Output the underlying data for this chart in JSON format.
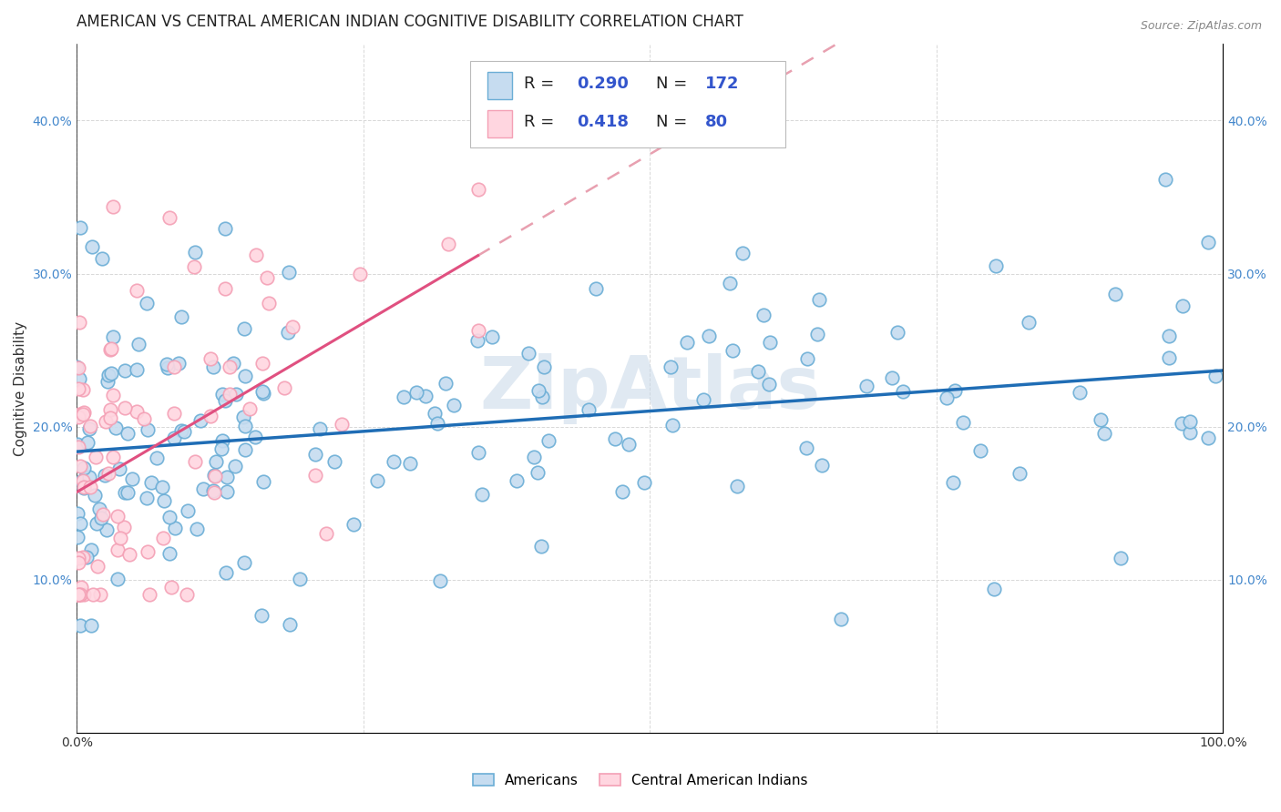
{
  "title": "AMERICAN VS CENTRAL AMERICAN INDIAN COGNITIVE DISABILITY CORRELATION CHART",
  "source": "Source: ZipAtlas.com",
  "ylabel": "Cognitive Disability",
  "watermark": "ZipAtlas",
  "xlim": [
    0.0,
    1.0
  ],
  "ylim": [
    0.0,
    0.45
  ],
  "x_tick_positions": [
    0.0,
    0.25,
    0.5,
    0.75,
    1.0
  ],
  "x_tick_labels": [
    "0.0%",
    "",
    "",
    "",
    "100.0%"
  ],
  "y_tick_positions": [
    0.0,
    0.1,
    0.2,
    0.3,
    0.4
  ],
  "y_tick_labels": [
    "",
    "10.0%",
    "20.0%",
    "30.0%",
    "40.0%"
  ],
  "americans_face_color": "#c6dcf0",
  "americans_edge_color": "#6baed6",
  "central_face_color": "#ffd6e0",
  "central_edge_color": "#f4a0b5",
  "trendline_americans_color": "#1f6db5",
  "trendline_central_solid_color": "#e05080",
  "trendline_central_dashed_color": "#e8a0b0",
  "legend_text_color": "#3355cc",
  "legend_r_color": "#3355cc",
  "background_color": "#ffffff",
  "grid_color": "#d8d8d8",
  "title_fontsize": 12,
  "axis_label_fontsize": 11,
  "tick_fontsize": 10,
  "legend_fontsize": 13,
  "R_americans": 0.29,
  "N_americans": 172,
  "R_central": 0.418,
  "N_central": 80,
  "seed_americans": 42,
  "seed_central": 99
}
